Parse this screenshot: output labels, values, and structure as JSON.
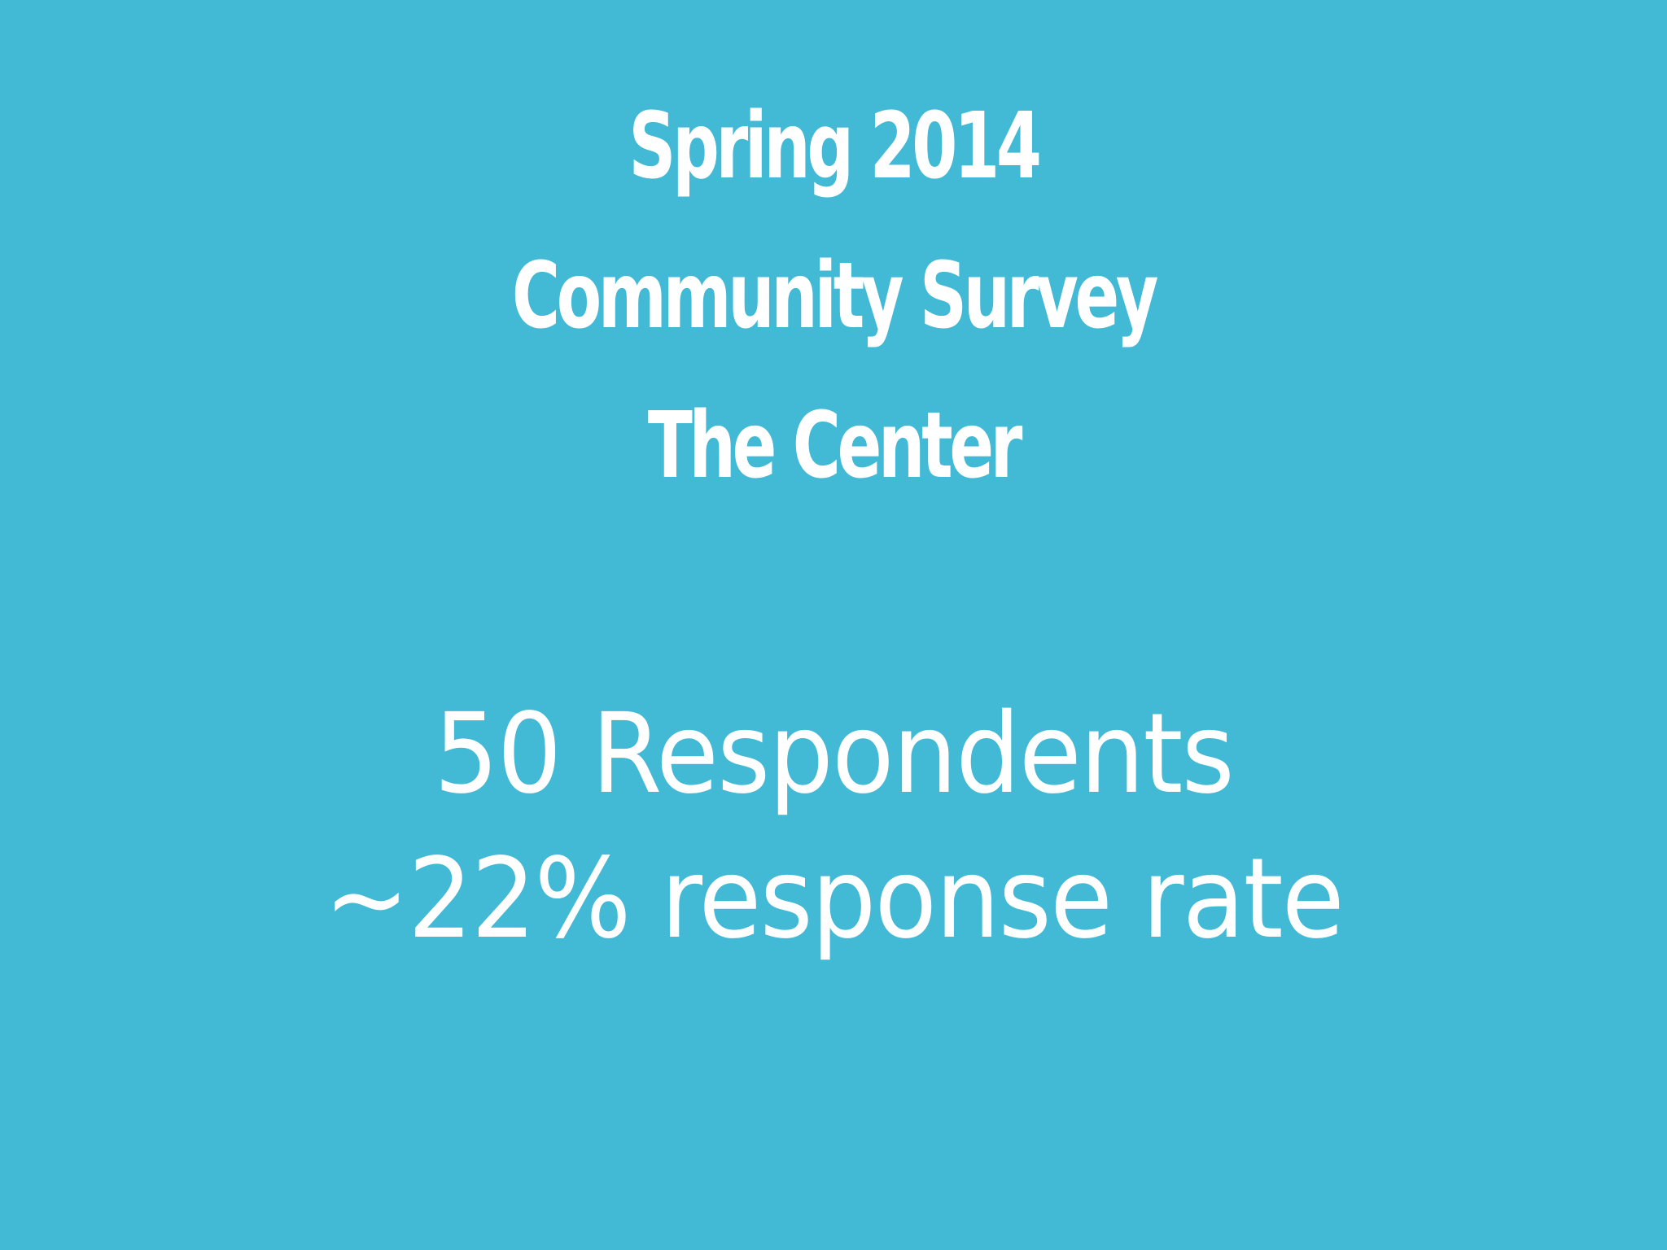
{
  "slide": {
    "background_color": "#42b9d5",
    "text_color": "#ffffff",
    "title_lines": [
      "Spring 2014",
      "Community Survey",
      "The Center"
    ],
    "stats": {
      "respondents": "50 Respondents",
      "response_rate": "~22% response rate"
    }
  }
}
